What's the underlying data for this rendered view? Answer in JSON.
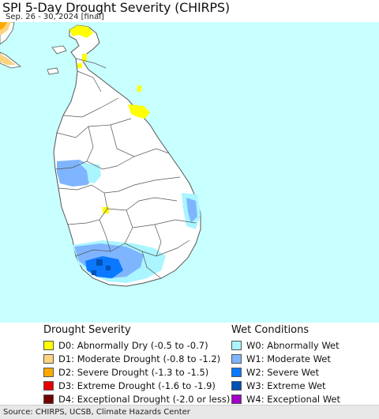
{
  "header": {
    "title": "SPI 5-Day Drought Severity (CHIRPS)",
    "subtitle": "Sep. 26 - 30, 2024 [final]"
  },
  "map": {
    "ocean_color": "#c8ffff",
    "land_color": "#ffffff",
    "boundary_color": "#555555"
  },
  "legend": {
    "drought": {
      "title": "Drought Severity",
      "items": [
        {
          "label": "D0: Abnormally Dry (-0.5 to -0.7)",
          "color": "#ffff00"
        },
        {
          "label": "D1: Moderate Drought (-0.8 to -1.2)",
          "color": "#fcd37f"
        },
        {
          "label": "D2: Severe Drought (-1.3 to -1.5)",
          "color": "#ffaa00"
        },
        {
          "label": "D3: Extreme Drought (-1.6 to -1.9)",
          "color": "#e60000"
        },
        {
          "label": "D4: Exceptional Drought (-2.0 or less)",
          "color": "#730000"
        }
      ]
    },
    "wet": {
      "title": "Wet Conditions",
      "items": [
        {
          "label": "W0: Abnormally Wet",
          "color": "#aaf5ff"
        },
        {
          "label": "W1: Moderate Wet",
          "color": "#7fb4ff"
        },
        {
          "label": "W2: Severe Wet",
          "color": "#0a78ff"
        },
        {
          "label": "W3: Extreme Wet",
          "color": "#0050b4"
        },
        {
          "label": "W4: Exceptional Wet",
          "color": "#a000c8"
        }
      ]
    }
  },
  "footer": {
    "source": "Source: CHIRPS, UCSB, Climate Hazards Center"
  }
}
